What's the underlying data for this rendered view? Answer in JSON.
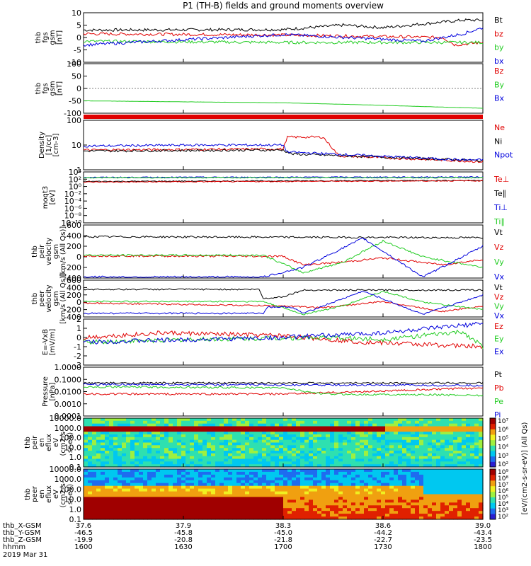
{
  "title": "P1 (TH-B) fields and ground moments overview",
  "colors": {
    "black": "#000000",
    "red": "#e00000",
    "green": "#22cc22",
    "blue": "#0000dd"
  },
  "panels": [
    {
      "id": "fgs",
      "ylabel": [
        "thb",
        "fgs",
        "gsm",
        "[nT]"
      ],
      "ticks": [
        "10",
        "5",
        "0",
        "-5",
        "-10"
      ],
      "legend": [
        {
          "text": "Bt",
          "color": "#000000"
        },
        {
          "text": "bz",
          "color": "#e00000"
        },
        {
          "text": "by",
          "color": "#22cc22"
        },
        {
          "text": "bx",
          "color": "#0000dd"
        }
      ]
    },
    {
      "id": "fgs_dsl",
      "ylabel": [
        "thb",
        "fgs",
        "gsm",
        "[nT]"
      ],
      "ticks": [
        "100",
        "50",
        "0",
        "-50",
        "-100"
      ],
      "legend": [
        {
          "text": "Bz",
          "color": "#e00000"
        },
        {
          "text": "By",
          "color": "#22cc22"
        },
        {
          "text": "Bx",
          "color": "#0000dd"
        }
      ]
    },
    {
      "id": "density",
      "ylabel": [
        "Density",
        "[1/cc]",
        "[cm-3]"
      ],
      "ticks": [
        "100",
        "10",
        "1"
      ],
      "legend": [
        {
          "text": "Ne",
          "color": "#e00000"
        },
        {
          "text": "Ni",
          "color": "#000000"
        },
        {
          "text": "Npot",
          "color": "#0000dd"
        }
      ]
    },
    {
      "id": "temp",
      "ylabel": [
        "moqt3",
        "[eV]"
      ],
      "ticks": [
        "10⁴",
        "10²",
        "10⁰",
        "10⁻²",
        "10⁻⁴",
        "10⁻⁶",
        "10⁻⁸",
        "10⁻¹⁰"
      ],
      "legend": [
        {
          "text": "Te⊥",
          "color": "#e00000"
        },
        {
          "text": "Te∥",
          "color": "#000000"
        },
        {
          "text": "Ti⊥",
          "color": "#0000dd"
        },
        {
          "text": "Ti∥",
          "color": "#22cc22"
        }
      ]
    },
    {
      "id": "pvel",
      "ylabel": [
        "thb",
        "peir",
        "velocity",
        "gsm",
        "[km/s (All Qs)]"
      ],
      "ticks": [
        "600",
        "400",
        "200",
        "0",
        "-200",
        "-400"
      ],
      "legend": [
        {
          "text": "Vt",
          "color": "#000000"
        },
        {
          "text": "Vz",
          "color": "#e00000"
        },
        {
          "text": "Vy",
          "color": "#22cc22"
        },
        {
          "text": "Vx",
          "color": "#0000dd"
        }
      ]
    },
    {
      "id": "evel",
      "ylabel": [
        "thb",
        "peer",
        "velocity",
        "gsm",
        "[km/s (All Qs)]"
      ],
      "ticks": [
        "600",
        "400",
        "200",
        "0",
        "-200",
        "-400"
      ],
      "legend": [
        {
          "text": "Vt",
          "color": "#000000"
        },
        {
          "text": "Vz",
          "color": "#e00000"
        },
        {
          "text": "Vy",
          "color": "#22cc22"
        },
        {
          "text": "Vx",
          "color": "#0000dd"
        }
      ]
    },
    {
      "id": "efield",
      "ylabel": [
        "E=-VxB",
        "[mV/m]"
      ],
      "ticks": [
        "2",
        "1",
        "0",
        "-1",
        "-2",
        "-3"
      ],
      "legend": [
        {
          "text": "Ez",
          "color": "#e00000"
        },
        {
          "text": "Ey",
          "color": "#22cc22"
        },
        {
          "text": "Ex",
          "color": "#0000dd"
        }
      ]
    },
    {
      "id": "pressure",
      "ylabel": [
        "Pressure",
        "[nPa]"
      ],
      "ticks": [
        "1.0000",
        "0.1000",
        "0.0100",
        "0.0010",
        "0.0001"
      ],
      "legend": [
        {
          "text": "Pt",
          "color": "#000000"
        },
        {
          "text": "Pb",
          "color": "#e00000"
        },
        {
          "text": "Pe",
          "color": "#22cc22"
        },
        {
          "text": "Pi",
          "color": "#0000dd"
        }
      ]
    },
    {
      "id": "ispec",
      "ylabel": [
        "thb",
        "peir",
        "en",
        "eflux",
        "eV",
        "(cm2-s-",
        "sr-eV)"
      ],
      "ticks": [
        "10000.0",
        "1000.0",
        "100.0",
        "10.0",
        "1.0",
        "0.1"
      ],
      "legend": []
    },
    {
      "id": "espec",
      "ylabel": [
        "thb",
        "peer",
        "en",
        "eflux",
        "eV",
        "(cm2-s-",
        "sr-eV)"
      ],
      "ticks": [
        "10000.0",
        "1000.0",
        "100.0",
        "10.0",
        "1.0",
        "0.1"
      ],
      "legend": []
    }
  ],
  "colorbar": {
    "label": "[eV/(cm2-s-sr-eV)] (All Qs)",
    "upper_ticks": [
      "10⁷",
      "10⁶",
      "10⁵",
      "10⁴",
      "10³",
      "10²"
    ],
    "lower_ticks": [
      "10⁹",
      "10⁸",
      "10⁷",
      "10⁶",
      "10⁵",
      "10⁴",
      "10³",
      "10²"
    ]
  },
  "xaxis": {
    "rows": [
      {
        "label": "thb_X-GSM",
        "values": [
          "37.6",
          "37.9",
          "38.3",
          "38.6",
          "39.0"
        ]
      },
      {
        "label": "thb_Y-GSM",
        "values": [
          "-46.5",
          "-45.8",
          "-45.0",
          "-44.2",
          "-43.4"
        ]
      },
      {
        "label": "thb_Z-GSM",
        "values": [
          "-19.9",
          "-20.8",
          "-21.8",
          "-22.7",
          "-23.5"
        ]
      },
      {
        "label": "hhmm",
        "values": [
          "1600",
          "1630",
          "1700",
          "1730",
          "1800"
        ]
      }
    ],
    "date": "2019 Mar 31"
  },
  "chart_data": {
    "type": "line",
    "title": "P1 (TH-B) fields and ground moments overview",
    "x_hhmm": [
      "1600",
      "1630",
      "1700",
      "1730",
      "1800"
    ],
    "series_shapes": {
      "fgs": {
        "ylim": [
          -10,
          10
        ],
        "Bt": [
          [
            0,
            3
          ],
          [
            0.5,
            3.2
          ],
          [
            0.65,
            5
          ],
          [
            0.75,
            4
          ],
          [
            0.95,
            7
          ],
          [
            1,
            7
          ]
        ],
        "bz": [
          [
            0,
            1.5
          ],
          [
            0.5,
            1
          ],
          [
            0.9,
            0
          ],
          [
            0.93,
            -3
          ],
          [
            1,
            -2
          ]
        ],
        "by": [
          [
            0,
            -1.5
          ],
          [
            0.5,
            -2
          ],
          [
            0.95,
            -2
          ],
          [
            1,
            -2
          ]
        ],
        "bx": [
          [
            0,
            -3
          ],
          [
            0.5,
            1.2
          ],
          [
            0.85,
            -1.5
          ],
          [
            0.95,
            1.5
          ],
          [
            1,
            4
          ]
        ]
      },
      "fgs_dsl": {
        "ylim": [
          -100,
          100
        ],
        "By": [
          [
            0,
            -50
          ],
          [
            0.5,
            -58
          ],
          [
            0.7,
            -66
          ],
          [
            1,
            -80
          ]
        ]
      },
      "density": {
        "ylim_log": [
          -0.2,
          2.3
        ],
        "Ne": [
          [
            0,
            0.8
          ],
          [
            0.5,
            0.85
          ],
          [
            0.51,
            1.45
          ],
          [
            0.6,
            1.45
          ],
          [
            0.64,
            0.5
          ],
          [
            0.95,
            0.25
          ],
          [
            1,
            0.2
          ]
        ],
        "Ni": [
          [
            0,
            0.75
          ],
          [
            0.5,
            0.8
          ],
          [
            0.52,
            0.6
          ],
          [
            0.95,
            0.3
          ],
          [
            1,
            0.25
          ]
        ],
        "Npot": [
          [
            0,
            1.0
          ],
          [
            0.28,
            1.05
          ],
          [
            0.5,
            1.05
          ],
          [
            0.51,
            0.7
          ],
          [
            0.95,
            0.3
          ],
          [
            1,
            0.3
          ]
        ]
      },
      "temp": {
        "ylim_log": [
          -10,
          5
        ],
        "Te∥": [
          [
            0,
            2.2
          ],
          [
            1,
            2.5
          ]
        ],
        "Te⊥": [
          [
            0,
            2.0
          ],
          [
            1,
            2.4
          ]
        ],
        "Ti⊥": [
          [
            0,
            3.4
          ],
          [
            1,
            3.5
          ]
        ],
        "Ti∥": [
          [
            0,
            3.3
          ],
          [
            1,
            3.3
          ]
        ]
      },
      "pvel": {
        "ylim": [
          -400,
          600
        ],
        "Vt": [
          [
            0,
            380
          ],
          [
            1,
            360
          ]
        ],
        "Vz": [
          [
            0,
            20
          ],
          [
            0.5,
            10
          ],
          [
            0.55,
            -150
          ],
          [
            0.65,
            -100
          ],
          [
            0.75,
            -20
          ],
          [
            0.9,
            -150
          ],
          [
            1,
            -50
          ]
        ],
        "Vy": [
          [
            0,
            30
          ],
          [
            0.45,
            30
          ],
          [
            0.55,
            -300
          ],
          [
            0.65,
            -100
          ],
          [
            0.75,
            300
          ],
          [
            0.85,
            0
          ],
          [
            1,
            -200
          ]
        ],
        "Vx": [
          [
            0,
            -380
          ],
          [
            0.45,
            -380
          ],
          [
            0.55,
            -200
          ],
          [
            0.7,
            350
          ],
          [
            0.85,
            -380
          ],
          [
            1,
            200
          ]
        ]
      },
      "evel": {
        "ylim": [
          -400,
          600
        ],
        "Vt": [
          [
            0,
            350
          ],
          [
            0.44,
            350
          ],
          [
            0.45,
            100
          ],
          [
            0.5,
            150
          ],
          [
            0.55,
            330
          ],
          [
            1,
            330
          ]
        ],
        "Vz": [
          [
            0,
            -20
          ],
          [
            0.5,
            -100
          ],
          [
            0.6,
            -150
          ],
          [
            0.75,
            20
          ],
          [
            0.9,
            -250
          ],
          [
            1,
            -100
          ]
        ],
        "Vy": [
          [
            0,
            20
          ],
          [
            0.45,
            20
          ],
          [
            0.55,
            -330
          ],
          [
            0.65,
            -100
          ],
          [
            0.75,
            300
          ],
          [
            0.85,
            0
          ],
          [
            1,
            -200
          ]
        ],
        "Vx": [
          [
            0,
            -300
          ],
          [
            0.45,
            -300
          ],
          [
            0.46,
            -130
          ],
          [
            0.52,
            -130
          ],
          [
            0.55,
            -300
          ],
          [
            0.7,
            300
          ],
          [
            0.85,
            -330
          ],
          [
            1,
            200
          ]
        ]
      },
      "efield": {
        "ylim": [
          -3,
          2
        ],
        "Ez": [
          [
            0,
            0
          ],
          [
            0.2,
            0.5
          ],
          [
            0.5,
            0.2
          ],
          [
            0.7,
            -0.5
          ],
          [
            1,
            -1
          ]
        ],
        "Ey": [
          [
            0,
            -0.5
          ],
          [
            0.3,
            -0.2
          ],
          [
            0.6,
            0
          ],
          [
            0.75,
            -0.2
          ],
          [
            0.95,
            0.6
          ],
          [
            1,
            -1
          ]
        ],
        "Ex": [
          [
            0,
            -0.5
          ],
          [
            0.5,
            0
          ],
          [
            0.75,
            0.5
          ],
          [
            1,
            1.5
          ]
        ]
      },
      "pressure": {
        "ylim_log": [
          -4,
          0
        ],
        "Pt": [
          [
            0,
            -1.3
          ],
          [
            1,
            -1.3
          ]
        ],
        "Pb": [
          [
            0,
            -2.2
          ],
          [
            0.5,
            -2.2
          ],
          [
            1,
            -1.7
          ]
        ],
        "Pe": [
          [
            0,
            -1.6
          ],
          [
            0.5,
            -1.7
          ],
          [
            0.6,
            -2.2
          ],
          [
            1,
            -2.3
          ]
        ],
        "Pi": [
          [
            0,
            -1.4
          ],
          [
            1,
            -1.5
          ]
        ]
      }
    }
  }
}
